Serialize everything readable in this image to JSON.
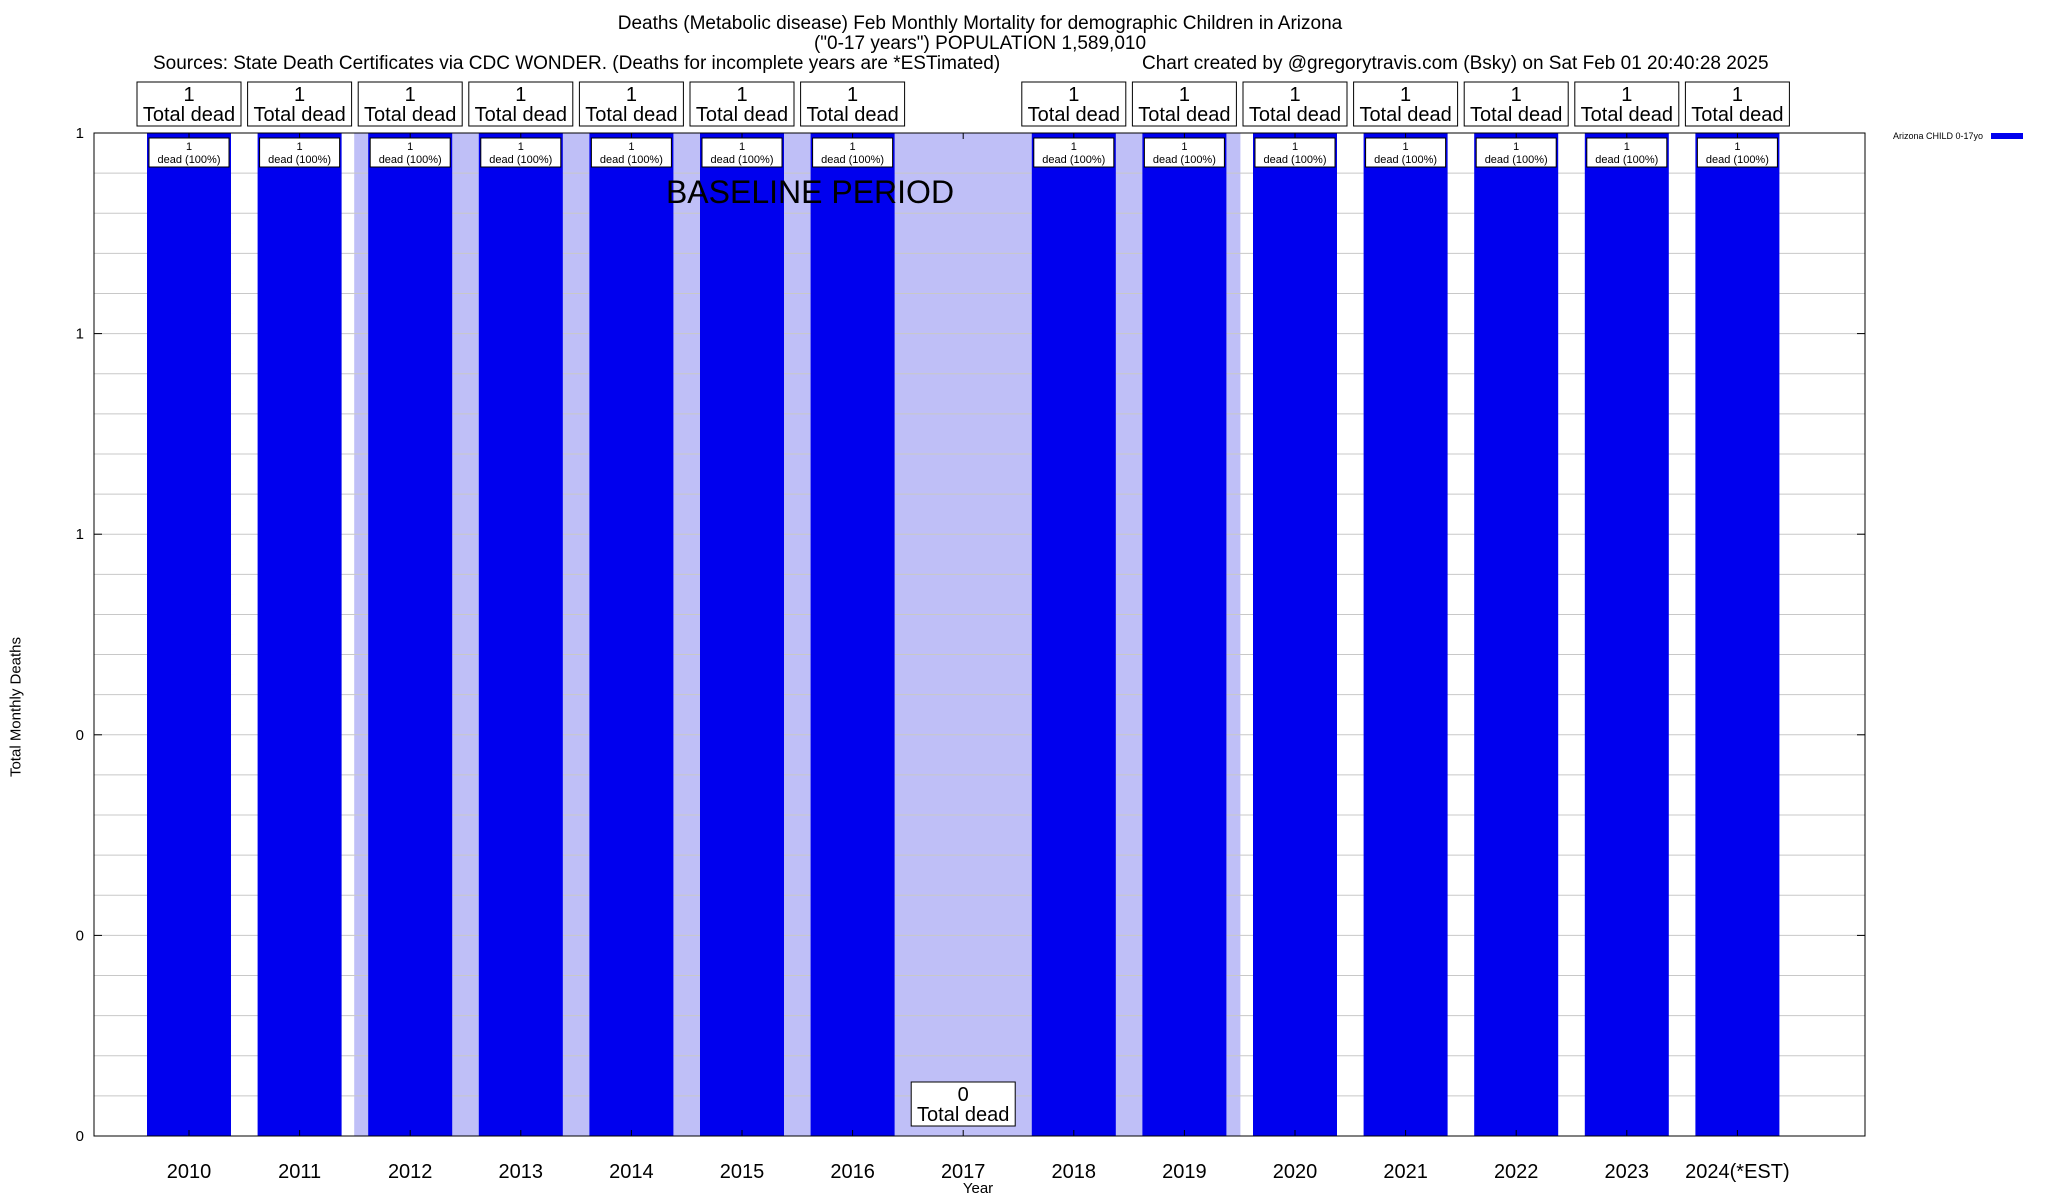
{
  "header": {
    "title_line1": "Deaths (Metabolic disease) Feb Monthly Mortality for demographic Children in Arizona",
    "title_line2": "(\"0-17 years\") POPULATION 1,589,010",
    "sources": "Sources: State Death Certificates via CDC WONDER. (Deaths for incomplete years are *ESTimated)",
    "credit": "Chart created by @gregorytravis.com (Bsky) on Sat Feb 01 20:40:28 2025"
  },
  "colors": {
    "bar": "#0000ee",
    "baseline_shade": "#bfbff7",
    "grid": "#c8c8c8"
  },
  "chart_data": {
    "type": "bar",
    "title": "Deaths (Metabolic disease) Feb Monthly Mortality for demographic Children in Arizona",
    "xlabel": "Year",
    "ylabel": "Total Monthly Deaths",
    "categories": [
      "2010",
      "2011",
      "2012",
      "2013",
      "2014",
      "2015",
      "2016",
      "2017",
      "2018",
      "2019",
      "2020",
      "2021",
      "2022",
      "2023",
      "2024(*EST)"
    ],
    "series": [
      {
        "name": "Arizona CHILD 0-17yo",
        "values": [
          1,
          1,
          1,
          1,
          1,
          1,
          1,
          0,
          1,
          1,
          1,
          1,
          1,
          1,
          1
        ]
      }
    ],
    "ylim": [
      0,
      1
    ],
    "ytick_values": [
      0,
      0.2,
      0.4,
      0.6,
      0.8,
      1
    ],
    "ytick_labels": [
      "0",
      "0",
      "0",
      "1",
      "1",
      "1"
    ],
    "top_labels": [
      {
        "count": "1",
        "text": "Total dead"
      },
      {
        "count": "1",
        "text": "Total dead"
      },
      {
        "count": "1",
        "text": "Total dead"
      },
      {
        "count": "1",
        "text": "Total dead"
      },
      {
        "count": "1",
        "text": "Total dead"
      },
      {
        "count": "1",
        "text": "Total dead"
      },
      {
        "count": "1",
        "text": "Total dead"
      },
      {
        "count": "0",
        "text": "Total dead"
      },
      {
        "count": "1",
        "text": "Total dead"
      },
      {
        "count": "1",
        "text": "Total dead"
      },
      {
        "count": "1",
        "text": "Total dead"
      },
      {
        "count": "1",
        "text": "Total dead"
      },
      {
        "count": "1",
        "text": "Total dead"
      },
      {
        "count": "1",
        "text": "Total dead"
      },
      {
        "count": "1",
        "text": "Total dead"
      }
    ],
    "inner_labels": [
      {
        "count": "1",
        "text": "dead (100%)"
      },
      {
        "count": "1",
        "text": "dead (100%)"
      },
      {
        "count": "1",
        "text": "dead (100%)"
      },
      {
        "count": "1",
        "text": "dead (100%)"
      },
      {
        "count": "1",
        "text": "dead (100%)"
      },
      {
        "count": "1",
        "text": "dead (100%)"
      },
      {
        "count": "1",
        "text": "dead (100%)"
      },
      null,
      {
        "count": "1",
        "text": "dead (100%)"
      },
      {
        "count": "1",
        "text": "dead (100%)"
      },
      {
        "count": "1",
        "text": "dead (100%)"
      },
      {
        "count": "1",
        "text": "dead (100%)"
      },
      {
        "count": "1",
        "text": "dead (100%)"
      },
      {
        "count": "1",
        "text": "dead (100%)"
      },
      {
        "count": "1",
        "text": "dead (100%)"
      }
    ],
    "baseline_period": {
      "label": "BASELINE PERIOD",
      "from": "2012",
      "to": "2019"
    },
    "grid": true,
    "legend_position": "top-right"
  }
}
